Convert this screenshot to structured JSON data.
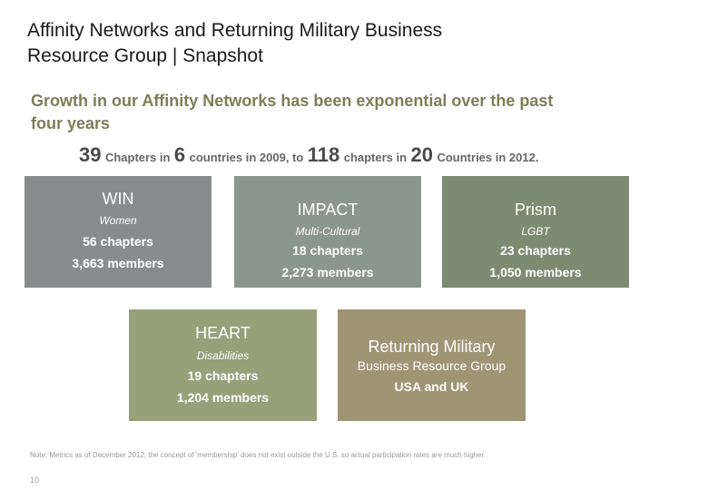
{
  "slide": {
    "title_line1": "Affinity Networks and Returning Military Business",
    "title_line2": "Resource Group | Snapshot",
    "subtitle_line1": "Growth in our Affinity Networks has been exponential over the past",
    "subtitle_line2": "four years",
    "summary": {
      "n1": "39",
      "t1": "Chapters in",
      "n2": "6",
      "t2": "countries in 2009, to",
      "n3": "118",
      "t3": "chapters  in",
      "n4": "20",
      "t4": "Countries in 2012."
    },
    "networks": {
      "win": {
        "name": "WIN",
        "group": "Women",
        "chapters": "56 chapters",
        "members": "3,663 members"
      },
      "impact": {
        "name": "IMPACT",
        "group": "Multi-Cultural",
        "chapters": "18 chapters",
        "members": "2,273 members"
      },
      "prism": {
        "name": "Prism",
        "group": "LGBT",
        "chapters": "23 chapters",
        "members": "1,050 members"
      },
      "heart": {
        "name": "HEART",
        "group": "Disabilities",
        "chapters": "19 chapters",
        "members": "1,204 members"
      },
      "returning_military": {
        "name": "Returning Military",
        "group": "Business Resource Group",
        "scope": "USA and UK"
      }
    },
    "note": "Note: Metrics as of December 2012; the concept of 'membership' does not exist outside the U.S. so actual participation rates are much higher",
    "page_number": "10"
  }
}
